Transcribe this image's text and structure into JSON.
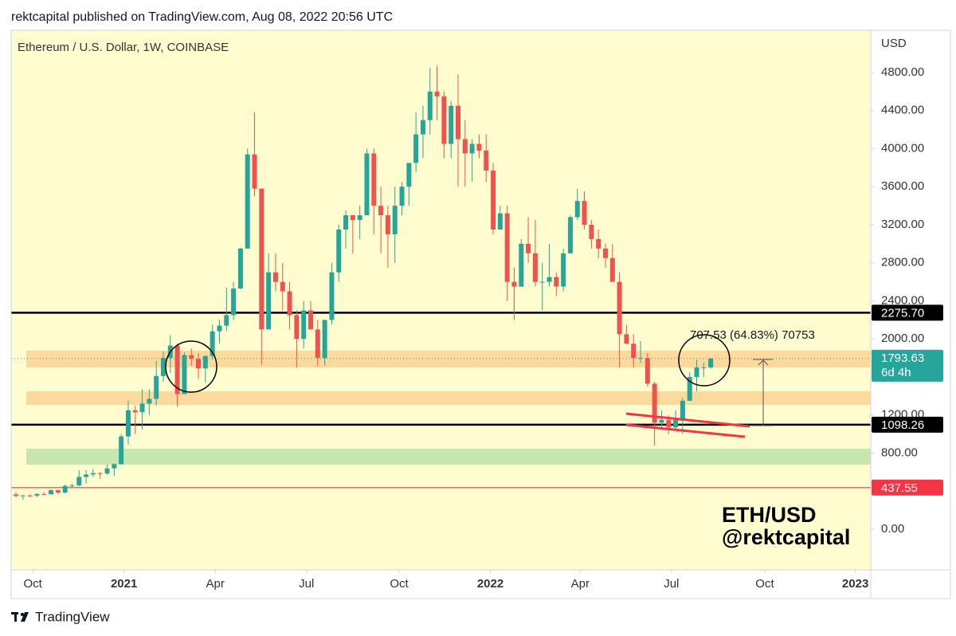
{
  "header": {
    "text": "rektcapital published on TradingView.com, Aug 08, 2022 20:56 UTC"
  },
  "footer": {
    "brand": "TradingView"
  },
  "chart_data": {
    "type": "candlestick",
    "legend": "Ethereum / U.S. Dollar, 1W, COINBASE",
    "currency": "USD",
    "up_color": "#26a69a",
    "down_color": "#ef5350",
    "background": "#fffdd0",
    "categories": [
      null,
      null,
      null,
      null,
      null,
      null,
      null,
      null,
      null,
      null,
      null,
      null,
      null,
      null,
      null,
      null,
      null,
      null,
      null,
      null,
      null,
      null,
      null,
      null,
      null,
      null,
      null,
      null,
      null,
      null,
      null,
      null,
      null,
      null,
      null,
      null,
      null,
      null,
      null,
      null,
      null,
      null,
      null,
      null,
      null,
      null,
      null,
      null,
      null,
      null,
      null,
      null,
      null,
      null,
      null,
      null,
      null,
      null,
      null,
      null,
      null,
      null,
      null,
      null,
      null,
      null,
      null,
      null,
      null,
      null,
      null,
      null,
      null,
      null,
      null,
      null,
      null,
      null,
      null,
      null,
      null,
      null,
      null,
      null,
      null,
      null,
      null,
      null,
      null,
      null,
      null,
      null,
      null,
      null,
      null,
      null,
      null,
      null,
      null,
      null
    ],
    "open": [
      365,
      350,
      355,
      353,
      370,
      367,
      410,
      385,
      455,
      460,
      550,
      575,
      590,
      585,
      640,
      685,
      975,
      1250,
      1230,
      1320,
      1370,
      1610,
      1800,
      1930,
      1420,
      1830,
      1790,
      1690,
      1820,
      2080,
      2140,
      2250,
      2530,
      2950,
      3940,
      3580,
      2100,
      2700,
      2600,
      2500,
      2250,
      2000,
      2300,
      2100,
      1800,
      2200,
      2700,
      3150,
      3300,
      3250,
      3300,
      3950,
      3400,
      3300,
      3100,
      3400,
      3600,
      3850,
      4150,
      4300,
      4600,
      4550,
      4050,
      4450,
      4100,
      3950,
      4050,
      3980,
      3770,
      3150,
      3320,
      2600,
      2550,
      3000,
      2900,
      2600,
      2600,
      2650,
      2550,
      2900,
      3280,
      3450,
      3200,
      3050,
      2950,
      2850,
      2600,
      2050,
      1950,
      1800,
      1800,
      1530,
      1120,
      1150,
      1070,
      1150,
      1350,
      1600,
      1700,
      1700
    ],
    "high": [
      390,
      360,
      365,
      380,
      390,
      420,
      415,
      470,
      480,
      620,
      620,
      635,
      600,
      680,
      690,
      1000,
      1350,
      1300,
      1470,
      1470,
      1770,
      1870,
      2040,
      1950,
      1860,
      1900,
      1850,
      1830,
      2150,
      2200,
      2540,
      2600,
      2960,
      4000,
      4380,
      3580,
      2900,
      2900,
      2800,
      2600,
      2300,
      2400,
      2400,
      2200,
      2200,
      2800,
      3200,
      3350,
      3300,
      3400,
      4000,
      4000,
      3600,
      3400,
      3600,
      3650,
      3850,
      4380,
      4450,
      4850,
      4870,
      4600,
      4500,
      4780,
      4300,
      4100,
      4150,
      4150,
      3850,
      3400,
      3400,
      2750,
      3050,
      3280,
      3250,
      2800,
      3000,
      2700,
      2950,
      3300,
      3580,
      3550,
      3250,
      3150,
      3000,
      3000,
      2700,
      2150,
      2050,
      1980,
      1850,
      1550,
      1250,
      1200,
      1250,
      1380,
      1650,
      1780,
      1750,
      1800
    ],
    "low": [
      335,
      310,
      335,
      335,
      360,
      365,
      370,
      375,
      440,
      450,
      480,
      550,
      530,
      575,
      560,
      680,
      890,
      1000,
      1050,
      1200,
      1300,
      1550,
      1640,
      1290,
      1420,
      1720,
      1580,
      1540,
      1780,
      1950,
      2080,
      2200,
      2520,
      2950,
      3500,
      1730,
      2100,
      2500,
      2300,
      2100,
      1700,
      1900,
      2100,
      1720,
      1720,
      2150,
      2600,
      2950,
      2900,
      3050,
      3300,
      3100,
      2900,
      2750,
      2800,
      3300,
      3400,
      3750,
      3900,
      4150,
      4300,
      3900,
      3900,
      3600,
      3600,
      3650,
      3900,
      3650,
      3100,
      3150,
      2400,
      2200,
      2550,
      2800,
      2550,
      2300,
      2550,
      2450,
      2500,
      2900,
      3250,
      3150,
      2950,
      2850,
      2750,
      2600,
      1700,
      1950,
      1700,
      1750,
      1500,
      880,
      1050,
      1000,
      1050,
      1000,
      1350,
      1450,
      1600,
      1690
    ],
    "close": [
      350,
      355,
      353,
      370,
      367,
      410,
      385,
      455,
      460,
      550,
      575,
      590,
      585,
      640,
      685,
      975,
      1250,
      1230,
      1320,
      1370,
      1610,
      1800,
      1930,
      1420,
      1830,
      1790,
      1690,
      1820,
      2080,
      2140,
      2250,
      2530,
      2950,
      3940,
      3580,
      2100,
      2700,
      2600,
      2500,
      2250,
      2000,
      2300,
      2100,
      1800,
      2200,
      2700,
      3150,
      3300,
      3250,
      3300,
      3950,
      3400,
      3300,
      3100,
      3400,
      3600,
      3850,
      4150,
      4300,
      4600,
      4550,
      4050,
      4450,
      4100,
      3950,
      4050,
      3980,
      3770,
      3150,
      3320,
      2600,
      2550,
      3000,
      2900,
      2600,
      2600,
      2650,
      2550,
      2900,
      3280,
      3450,
      3200,
      3050,
      2950,
      2850,
      2600,
      2050,
      1950,
      1800,
      1800,
      1530,
      1120,
      1150,
      1070,
      1150,
      1350,
      1600,
      1700,
      1700,
      1794
    ],
    "xlim": [
      -0.68,
      121.8
    ],
    "xticks": [
      {
        "value": 2.4,
        "label": "Oct"
      },
      {
        "value": 15.4,
        "label": "2021"
      },
      {
        "value": 28.4,
        "label": "Apr"
      },
      {
        "value": 41.4,
        "label": "Jul"
      },
      {
        "value": 54.6,
        "label": "Oct"
      },
      {
        "value": 67.6,
        "label": "2022"
      },
      {
        "value": 80.4,
        "label": "Apr"
      },
      {
        "value": 93.4,
        "label": "Jul"
      },
      {
        "value": 106.7,
        "label": "Oct"
      },
      {
        "value": 119.6,
        "label": "2023"
      }
    ],
    "ylim": [
      -427,
      5244
    ],
    "yticks": [
      {
        "value": 0,
        "label": "0.00"
      },
      {
        "value": 800,
        "label": "800.00"
      },
      {
        "value": 1200,
        "label": "1200.00"
      },
      {
        "value": 2000,
        "label": "2000.00"
      },
      {
        "value": 2400,
        "label": "2400.00"
      },
      {
        "value": 2800,
        "label": "2800.00"
      },
      {
        "value": 3200,
        "label": "3200.00"
      },
      {
        "value": 3600,
        "label": "3600.00"
      },
      {
        "value": 4000,
        "label": "4000.00"
      },
      {
        "value": 4400,
        "label": "4400.00"
      },
      {
        "value": 4800,
        "label": "4800.00"
      }
    ],
    "zones": [
      {
        "from": 1700,
        "to": 1876,
        "color": "#fdd99b"
      },
      {
        "from": 1307,
        "to": 1449,
        "color": "#fdd99b"
      },
      {
        "from": 678,
        "to": 846,
        "color": "#c8e6b0"
      }
    ],
    "levels": [
      {
        "value": 2275.7,
        "label": "2275.70",
        "color": "#000000"
      },
      {
        "value": 1098.26,
        "label": "1098.26",
        "color": "#000000"
      },
      {
        "value": 437.55,
        "label": "437.55",
        "color": "#f23645"
      }
    ],
    "last_price": {
      "value": 1793.63,
      "label": "1793.63",
      "countdown": "6d 4h",
      "color": "#26a69a"
    },
    "annotations": {
      "measure": "707.53 (64.83%) 70753",
      "pair": "ETH/USD",
      "handle": "@rektcapital"
    }
  }
}
